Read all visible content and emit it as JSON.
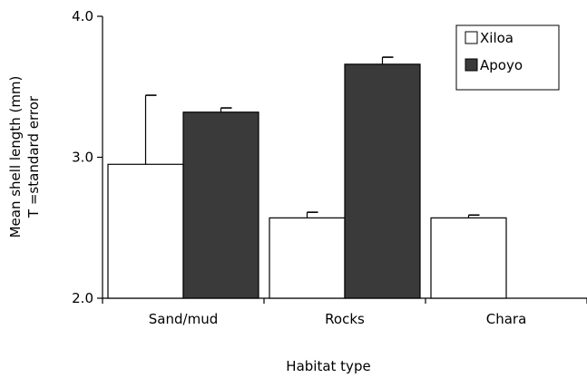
{
  "chart_data": {
    "type": "bar",
    "categories": [
      "Sand/mud",
      "Rocks",
      "Chara"
    ],
    "series": [
      {
        "name": "Xiloa",
        "values": [
          2.95,
          2.57,
          2.57
        ],
        "errors": [
          0.49,
          0.04,
          0.02
        ],
        "color": "#ffffff"
      },
      {
        "name": "Apoyo",
        "values": [
          3.32,
          3.66,
          null
        ],
        "errors": [
          0.03,
          0.05,
          null
        ],
        "color": "#3a3a3a"
      }
    ],
    "ylim": [
      2.0,
      4.0
    ],
    "yticks": [
      "2.0",
      "3.0",
      "4.0"
    ],
    "ylabel_line1": "Mean shell length (mm)",
    "ylabel_line2": "T =standard error",
    "xlabel": "Habitat type",
    "legend_position": "top-right",
    "grid": false
  }
}
